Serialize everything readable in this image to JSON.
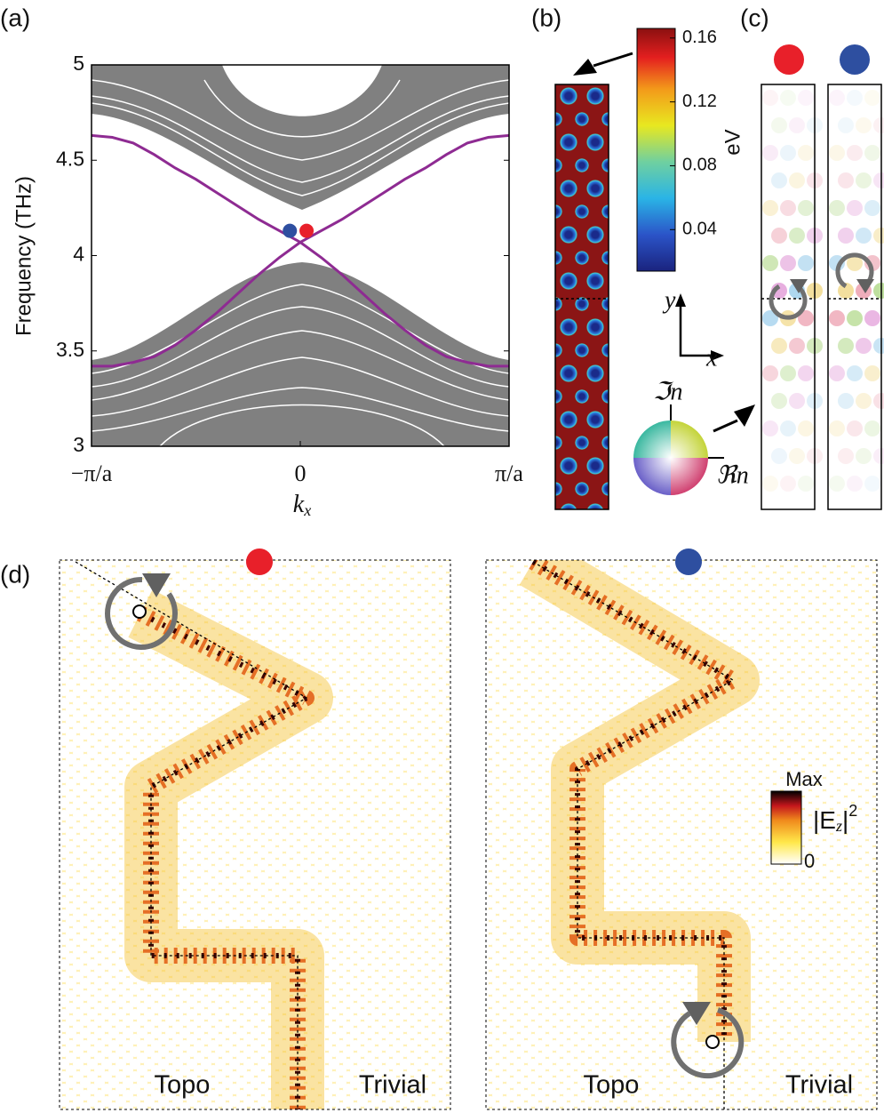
{
  "panel_labels": [
    "(a)",
    "(b)",
    "(c)",
    "(d)"
  ],
  "chart_data": {
    "type": "line",
    "y_label": "Frequency (THz)",
    "x_label": {
      "base": "k",
      "sub": "x"
    },
    "xlim": [
      -1,
      1
    ],
    "xticks": [
      {
        "value": -1,
        "label": "−π/a"
      },
      0,
      {
        "value": 1,
        "label": "π/a"
      }
    ],
    "ylim": [
      3,
      5
    ],
    "yticks": [
      3,
      3.5,
      4,
      4.5,
      5
    ],
    "x": [
      -1,
      -0.9,
      -0.8,
      -0.7,
      -0.6,
      -0.5,
      -0.4,
      -0.3,
      -0.2,
      -0.1,
      0,
      0.1,
      0.2,
      0.3,
      0.4,
      0.5,
      0.6,
      0.7,
      0.8,
      0.9,
      1
    ],
    "series": [
      {
        "color": "#8e2b92",
        "values": [
          4.63,
          4.62,
          4.59,
          4.53,
          4.46,
          4.4,
          4.33,
          4.26,
          4.19,
          4.13,
          4.07,
          3.99,
          3.9,
          3.8,
          3.7,
          3.61,
          3.53,
          3.47,
          3.44,
          3.42,
          3.42
        ]
      },
      {
        "color": "#8e2b92",
        "values": [
          3.42,
          3.42,
          3.44,
          3.47,
          3.53,
          3.61,
          3.7,
          3.8,
          3.9,
          3.99,
          4.07,
          4.13,
          4.19,
          4.26,
          4.33,
          4.4,
          4.46,
          4.53,
          4.59,
          4.62,
          4.63
        ]
      }
    ],
    "markers": [
      {
        "color": "#2e4fa0",
        "x": -0.05,
        "y": 4.13
      },
      {
        "color": "#e8202a",
        "x": 0.03,
        "y": 4.13
      }
    ]
  },
  "panel_b": {
    "colorbar": {
      "title": "eV",
      "lim": [
        0.014,
        0.166
      ],
      "ticks": [
        0.04,
        0.08,
        0.12,
        0.16
      ]
    },
    "axes": {
      "y": "y",
      "x": "x"
    },
    "wheel": {
      "imag": "ℑn",
      "real": "ℜn"
    }
  },
  "panel_d": {
    "left": {
      "left_label": "Topo",
      "right_label": "Trivial"
    },
    "right": {
      "left_label": "Topo",
      "right_label": "Trivial"
    },
    "colorbar": {
      "max_label": "Max",
      "min_label": "0",
      "quantity": {
        "open": "|E",
        "sub": "z",
        "close": "|",
        "sup": "2"
      }
    }
  }
}
